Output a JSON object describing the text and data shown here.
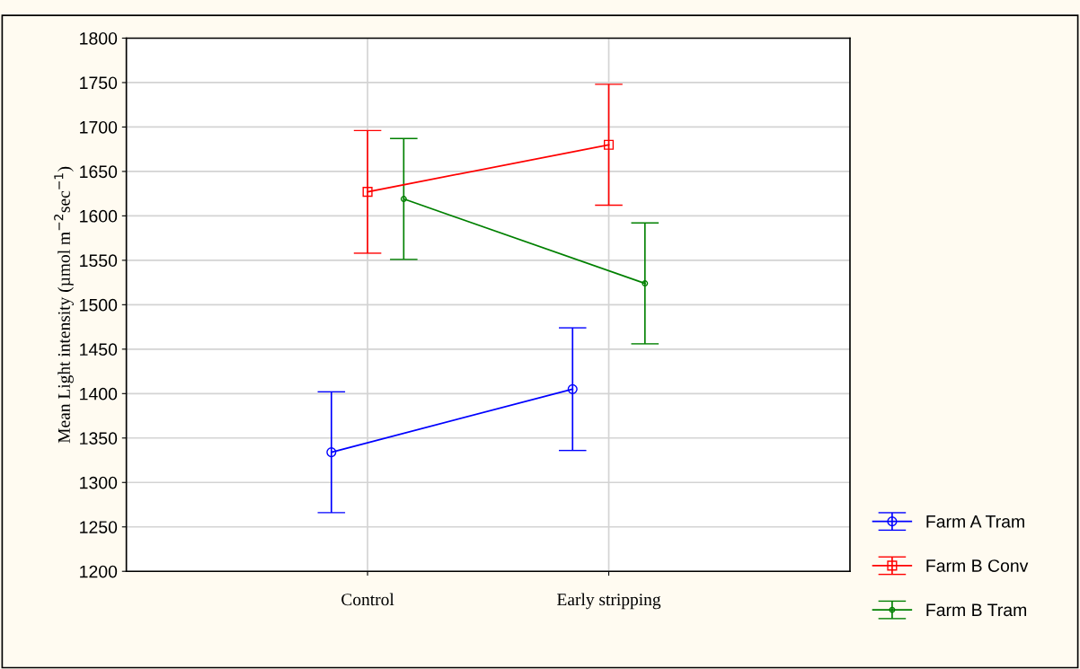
{
  "chart_data": {
    "type": "line",
    "ylabel": "Mean Light intensity (µmol m$^{−2}$sec$^{−1}$)",
    "categories": [
      "Control",
      "Early stripping"
    ],
    "series": [
      {
        "name": "Farm A Tram",
        "color": "#0000ff",
        "values": [
          1334,
          1405
        ],
        "errors": [
          68,
          69
        ],
        "marker": "circle"
      },
      {
        "name": "Farm B Conv",
        "color": "#ff0000",
        "values": [
          1627,
          1680
        ],
        "errors": [
          69,
          68
        ],
        "marker": "square"
      },
      {
        "name": "Farm B Tram",
        "color": "#008000",
        "values": [
          1619,
          1524
        ],
        "errors": [
          68,
          68
        ],
        "marker": "circle"
      }
    ],
    "ylim": [
      1200,
      1800
    ],
    "yticks": [
      1200,
      1250,
      1300,
      1350,
      1400,
      1450,
      1500,
      1550,
      1600,
      1650,
      1700,
      1750,
      1800
    ],
    "grid": true,
    "legend": "right"
  }
}
